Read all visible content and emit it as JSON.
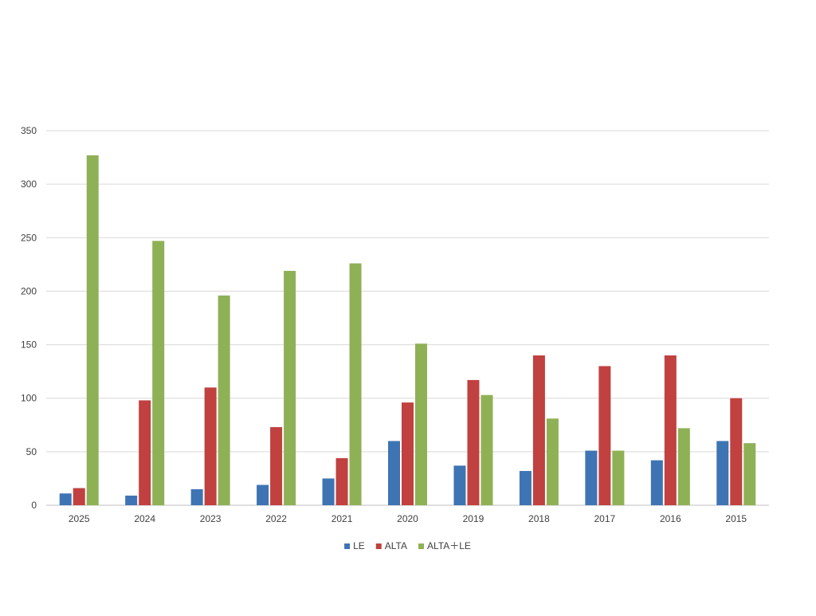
{
  "chart_data": {
    "type": "bar",
    "title": "",
    "xlabel": "",
    "ylabel": "",
    "categories": [
      "2025",
      "2024",
      "2023",
      "2022",
      "2021",
      "2020",
      "2019",
      "2018",
      "2017",
      "2016",
      "2015"
    ],
    "series": [
      {
        "name": "LE",
        "color": "#3e74b3",
        "values": [
          11,
          9,
          15,
          19,
          25,
          60,
          37,
          32,
          51,
          42,
          60
        ]
      },
      {
        "name": "ALTA",
        "color": "#c0413f",
        "values": [
          16,
          98,
          110,
          73,
          44,
          96,
          117,
          140,
          130,
          140,
          100
        ]
      },
      {
        "name": "ALTA＋LE",
        "color": "#8fb156",
        "values": [
          327,
          247,
          196,
          219,
          226,
          151,
          103,
          81,
          51,
          72,
          58
        ]
      }
    ],
    "ylim": [
      0,
      350
    ],
    "yticks": [
      "0",
      "50",
      "100",
      "150",
      "200",
      "250",
      "300",
      "350"
    ],
    "grid": true,
    "legend_position": "bottom"
  }
}
